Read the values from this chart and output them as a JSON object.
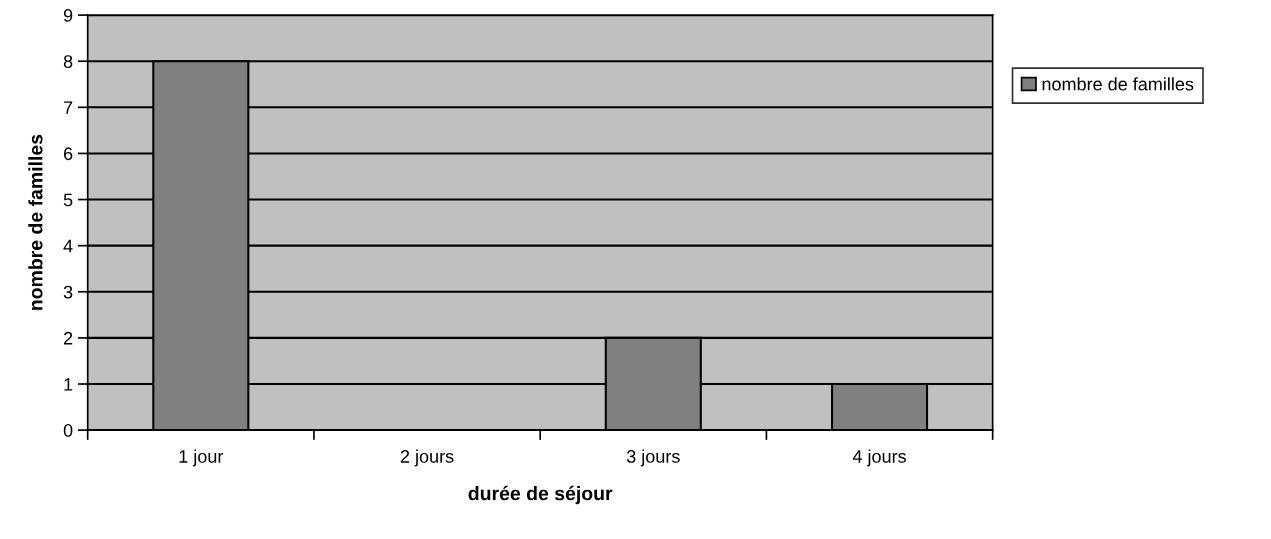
{
  "chart_data": {
    "type": "bar",
    "xlabel": "durée de séjour",
    "ylabel": "nombre de familles",
    "categories": [
      "1 jour",
      "2 jours",
      "3 jours",
      "4 jours"
    ],
    "series": [
      {
        "name": "nombre de familles",
        "color": "#808080",
        "values": [
          8,
          0,
          2,
          1
        ]
      }
    ],
    "ylim": [
      0,
      9
    ],
    "yticks": [
      0,
      1,
      2,
      3,
      4,
      5,
      6,
      7,
      8,
      9
    ],
    "grid": "y",
    "legend": "right"
  }
}
